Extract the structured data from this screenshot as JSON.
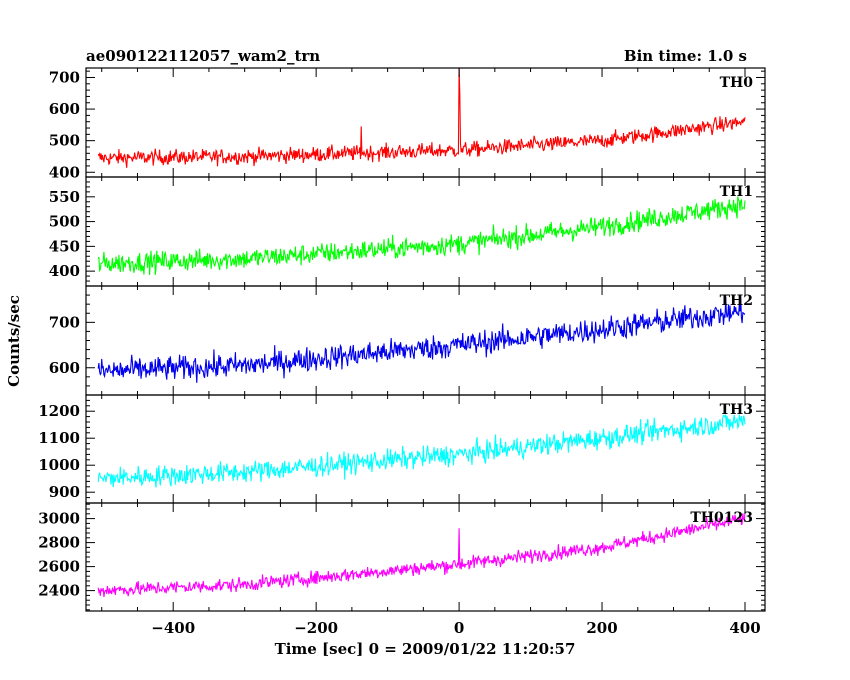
{
  "chart_data": {
    "type": "line",
    "title_left": "ae090122112057_wam2_trn",
    "title_right": "Bin time: 1.0 s",
    "xlabel": "Time [sec] 0 = 2009/01/22 11:20:57",
    "ylabel": "Counts/sec",
    "xlim": [
      -522,
      428
    ],
    "x_ticks": [
      -400,
      -200,
      0,
      200,
      400
    ],
    "x_tick_labels": [
      "−400",
      "−200",
      "0",
      "200",
      "400"
    ],
    "grid": false,
    "series": [
      {
        "name": "TH0",
        "color": "#ff0000",
        "ylim": [
          385,
          730
        ],
        "y_ticks": [
          400,
          500,
          600,
          700
        ],
        "y_tick_labels": [
          "400",
          "500",
          "600",
          "700"
        ],
        "x_range": [
          -505,
          400
        ],
        "trend": [
          [
            -505,
            445
          ],
          [
            -300,
            450
          ],
          [
            0,
            470
          ],
          [
            200,
            500
          ],
          [
            400,
            560
          ]
        ],
        "noise": 40,
        "spikes": [
          [
            0,
            730
          ],
          [
            -137,
            545
          ],
          [
            1,
            650
          ]
        ]
      },
      {
        "name": "TH1",
        "color": "#00ff00",
        "ylim": [
          370,
          590
        ],
        "y_ticks": [
          400,
          450,
          500,
          550
        ],
        "y_tick_labels": [
          "400",
          "450",
          "500",
          "550"
        ],
        "x_range": [
          -505,
          400
        ],
        "trend": [
          [
            -505,
            415
          ],
          [
            -300,
            425
          ],
          [
            0,
            455
          ],
          [
            200,
            490
          ],
          [
            400,
            535
          ]
        ],
        "noise": 35,
        "spikes": []
      },
      {
        "name": "TH2",
        "color": "#0000ee",
        "ylim": [
          540,
          780
        ],
        "y_ticks": [
          600,
          700
        ],
        "y_tick_labels": [
          "600",
          "700"
        ],
        "x_range": [
          -505,
          400
        ],
        "trend": [
          [
            -505,
            592
          ],
          [
            -300,
            605
          ],
          [
            0,
            650
          ],
          [
            200,
            685
          ],
          [
            400,
            725
          ]
        ],
        "noise": 45,
        "spikes": []
      },
      {
        "name": "TH3",
        "color": "#00ffff",
        "ylim": [
          860,
          1260
        ],
        "y_ticks": [
          900,
          1000,
          1100,
          1200
        ],
        "y_tick_labels": [
          "900",
          "1000",
          "1100",
          "1200"
        ],
        "x_range": [
          -505,
          400
        ],
        "trend": [
          [
            -505,
            950
          ],
          [
            -300,
            975
          ],
          [
            0,
            1040
          ],
          [
            200,
            1100
          ],
          [
            400,
            1165
          ]
        ],
        "noise": 65,
        "spikes": []
      },
      {
        "name": "TH0123",
        "color": "#ff00ff",
        "ylim": [
          2230,
          3130
        ],
        "y_ticks": [
          2400,
          2600,
          2800,
          3000
        ],
        "y_tick_labels": [
          "2400",
          "2600",
          "2800",
          "3000"
        ],
        "x_range": [
          -505,
          400
        ],
        "trend": [
          [
            -505,
            2400
          ],
          [
            -300,
            2450
          ],
          [
            0,
            2620
          ],
          [
            200,
            2760
          ],
          [
            400,
            3000
          ]
        ],
        "noise": 95,
        "spikes": [
          [
            0,
            2920
          ]
        ]
      }
    ]
  }
}
